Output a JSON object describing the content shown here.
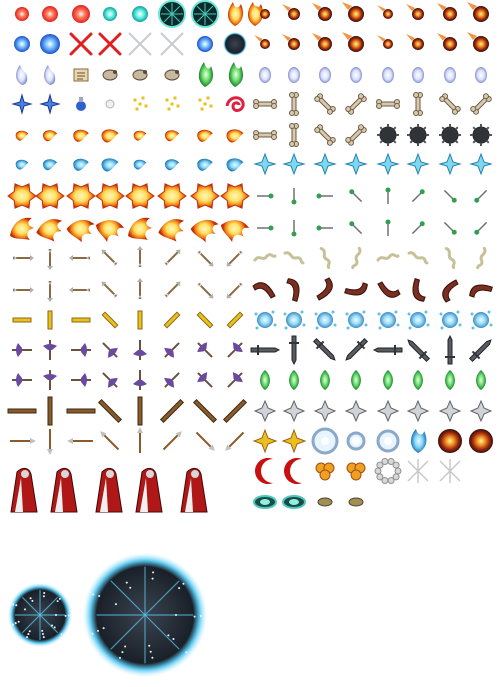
{
  "sheet": {
    "background": "#ffffff",
    "kind": "sprite-sheet",
    "sections": [
      {
        "name": "left-effects",
        "rows": [
          {
            "id": "orbs-small",
            "sprites": [
              "red-orb-icon",
              "red-orb-icon",
              "red-orb-icon",
              "teal-orb-icon",
              "teal-orb-icon",
              "magic-circle-icon",
              "magic-circle-icon",
              "fire-icon",
              "fire-icon"
            ]
          },
          {
            "id": "orbs-blue",
            "sprites": [
              "blue-orb-icon",
              "blue-orb-icon",
              "red-x-icon",
              "red-x-icon",
              "crossed-swords-icon",
              "crossed-swords-icon",
              "blue-orb-icon",
              "dark-portal-icon"
            ]
          },
          {
            "id": "ghosts",
            "sprites": [
              "ghost-flame-icon",
              "ghost-flame-icon",
              "scroll-icon",
              "critter-icon",
              "critter-icon",
              "critter-icon",
              "green-flame-icon",
              "green-flame-icon"
            ]
          },
          {
            "id": "sparkles",
            "sprites": [
              "blue-star-icon",
              "blue-star-icon",
              "potion-icon",
              "pearl-icon",
              "gold-sparkle-icon",
              "gold-sparkle-icon",
              "gold-sparkle-icon",
              "red-swirl-icon"
            ]
          },
          {
            "id": "fireballs-small",
            "sprites": [
              "fireball-icon",
              "fireball-icon",
              "fireball-icon",
              "fireball-icon",
              "fireball-icon",
              "fireball-icon",
              "fireball-icon",
              "fireball-icon"
            ]
          },
          {
            "id": "iceballs",
            "sprites": [
              "iceball-icon",
              "iceball-icon",
              "iceball-icon",
              "iceball-icon",
              "iceball-icon",
              "iceball-icon",
              "iceball-icon",
              "iceball-icon"
            ]
          },
          {
            "id": "explosions",
            "sprites": [
              "explosion-icon",
              "explosion-icon",
              "explosion-icon",
              "explosion-icon",
              "explosion-icon",
              "explosion-icon",
              "explosion-icon",
              "explosion-icon"
            ]
          },
          {
            "id": "firebursts",
            "sprites": [
              "fire-burst-icon",
              "fire-burst-icon",
              "fire-burst-icon",
              "fire-burst-icon",
              "fire-burst-icon",
              "fire-burst-icon",
              "fire-burst-icon",
              "fire-burst-icon"
            ]
          },
          {
            "id": "arrows-a",
            "sprites": [
              "arrow-icon",
              "arrow-icon",
              "arrow-icon",
              "arrow-icon",
              "arrow-icon",
              "arrow-icon",
              "arrow-icon",
              "arrow-icon"
            ]
          },
          {
            "id": "arrows-b",
            "sprites": [
              "arrow-icon",
              "arrow-icon",
              "arrow-icon",
              "arrow-icon",
              "arrow-icon",
              "arrow-icon",
              "arrow-icon",
              "arrow-icon"
            ]
          },
          {
            "id": "golden-bolts",
            "sprites": [
              "bolt-icon",
              "bolt-icon",
              "bolt-icon",
              "bolt-icon",
              "bolt-icon",
              "bolt-icon",
              "bolt-icon",
              "bolt-icon"
            ]
          },
          {
            "id": "axes-purple",
            "sprites": [
              "axe-icon",
              "axe-icon",
              "axe-icon",
              "axe-icon",
              "axe-icon",
              "axe-icon",
              "axe-icon",
              "axe-icon"
            ]
          },
          {
            "id": "axes-grey",
            "sprites": [
              "axe-icon",
              "axe-icon",
              "axe-icon",
              "axe-icon",
              "axe-icon",
              "axe-icon",
              "axe-icon",
              "axe-icon"
            ]
          },
          {
            "id": "staves",
            "sprites": [
              "staff-icon",
              "staff-icon",
              "staff-icon",
              "staff-icon",
              "staff-icon",
              "staff-icon",
              "staff-icon",
              "staff-icon"
            ]
          },
          {
            "id": "spears",
            "sprites": [
              "spear-icon",
              "spear-icon",
              "spear-icon",
              "spear-icon",
              "spear-icon",
              "spear-icon",
              "spear-icon",
              "spear-icon"
            ]
          },
          {
            "id": "caped-figures",
            "sprites": [
              "caped-figure-icon",
              "caped-figure-icon",
              "caped-figure-icon",
              "caped-figure-icon",
              "caped-figure-icon"
            ]
          }
        ]
      },
      {
        "name": "right-effects",
        "rows": [
          {
            "id": "meteors-small",
            "sprites": [
              "meteor-icon",
              "meteor-icon",
              "meteor-icon",
              "meteor-icon",
              "meteor-icon",
              "meteor-icon",
              "meteor-icon",
              "meteor-icon"
            ]
          },
          {
            "id": "meteors-large",
            "sprites": [
              "meteor-icon",
              "meteor-icon",
              "meteor-icon",
              "meteor-icon",
              "meteor-icon",
              "meteor-icon",
              "meteor-icon",
              "meteor-icon"
            ]
          },
          {
            "id": "wisps",
            "sprites": [
              "wisp-icon",
              "wisp-icon",
              "wisp-icon",
              "wisp-icon",
              "wisp-icon",
              "wisp-icon",
              "wisp-icon",
              "wisp-icon"
            ]
          },
          {
            "id": "bones-a",
            "sprites": [
              "bone-icon",
              "bone-icon",
              "bone-icon",
              "bone-icon",
              "bone-icon",
              "bone-icon",
              "bone-icon",
              "bone-icon"
            ]
          },
          {
            "id": "bones-maces",
            "sprites": [
              "bone-icon",
              "bone-icon",
              "bone-icon",
              "bone-icon",
              "mace-icon",
              "mace-icon",
              "mace-icon",
              "mace-icon"
            ]
          },
          {
            "id": "ice-shards",
            "sprites": [
              "ice-shard-icon",
              "ice-shard-icon",
              "ice-shard-icon",
              "ice-shard-icon",
              "ice-shard-icon",
              "ice-shard-icon",
              "ice-shard-icon",
              "ice-shard-icon"
            ]
          },
          {
            "id": "darts",
            "sprites": [
              "dart-icon",
              "dart-icon",
              "dart-icon",
              "dart-icon",
              "dart-icon",
              "dart-icon",
              "dart-icon",
              "dart-icon"
            ]
          },
          {
            "id": "green-darts",
            "sprites": [
              "dart-icon",
              "dart-icon",
              "dart-icon",
              "dart-icon",
              "dart-icon",
              "dart-icon",
              "dart-icon",
              "dart-icon"
            ]
          },
          {
            "id": "worms",
            "sprites": [
              "worm-icon",
              "worm-icon",
              "worm-icon",
              "worm-icon",
              "worm-icon",
              "worm-icon",
              "worm-icon",
              "worm-icon"
            ]
          },
          {
            "id": "boomerangs",
            "sprites": [
              "boomerang-icon",
              "boomerang-icon",
              "boomerang-icon",
              "boomerang-icon",
              "boomerang-icon",
              "boomerang-icon",
              "boomerang-icon",
              "boomerang-icon"
            ]
          },
          {
            "id": "water-splashes",
            "sprites": [
              "splash-icon",
              "splash-icon",
              "splash-icon",
              "splash-icon",
              "splash-icon",
              "splash-icon",
              "splash-icon",
              "splash-icon"
            ]
          },
          {
            "id": "swords",
            "sprites": [
              "sword-icon",
              "sword-icon",
              "sword-icon",
              "sword-icon",
              "sword-icon",
              "sword-icon",
              "sword-icon",
              "sword-icon"
            ]
          },
          {
            "id": "green-leaves",
            "sprites": [
              "leaf-icon",
              "leaf-icon",
              "leaf-icon",
              "leaf-icon",
              "leaf-icon",
              "leaf-icon",
              "leaf-icon",
              "leaf-icon"
            ]
          },
          {
            "id": "shuriken",
            "sprites": [
              "shuriken-icon",
              "shuriken-icon",
              "shuriken-icon",
              "shuriken-icon",
              "shuriken-icon",
              "shuriken-icon",
              "shuriken-icon",
              "shuriken-icon"
            ]
          },
          {
            "id": "bursts",
            "sprites": [
              "spark-icon",
              "spark-icon",
              "ring-icon",
              "ring-icon",
              "ring-icon",
              "blue-flame-icon",
              "orange-blast-icon",
              "orange-blast-icon"
            ]
          },
          {
            "id": "misc-effects",
            "sprites": [
              "red-crescent-icon",
              "red-crescent-icon",
              "smoke-puff-icon",
              "smoke-puff-icon",
              "smoke-ring-icon",
              "slash-spark-icon",
              "slash-spark-icon"
            ]
          },
          {
            "id": "eyes-bugs",
            "sprites": [
              "eye-icon",
              "eye-icon",
              "bug-icon",
              "bug-icon"
            ]
          }
        ]
      },
      {
        "name": "large-portals",
        "rows": [
          {
            "id": "portals",
            "sprites": [
              "dark-portal-icon",
              "dark-portal-icon"
            ]
          }
        ]
      }
    ],
    "palette": {
      "fire": "#f07a10",
      "fire_core": "#ffe060",
      "ice": "#40b8e8",
      "red": "#e02020",
      "green": "#40c040",
      "gold": "#e8c020",
      "purple": "#6a4aa0",
      "steel": "#707880",
      "wood": "#8a5a2a",
      "bone": "#d8c8b0",
      "dark": "#1a2028",
      "portal_glow": "#5ac8f0"
    }
  }
}
